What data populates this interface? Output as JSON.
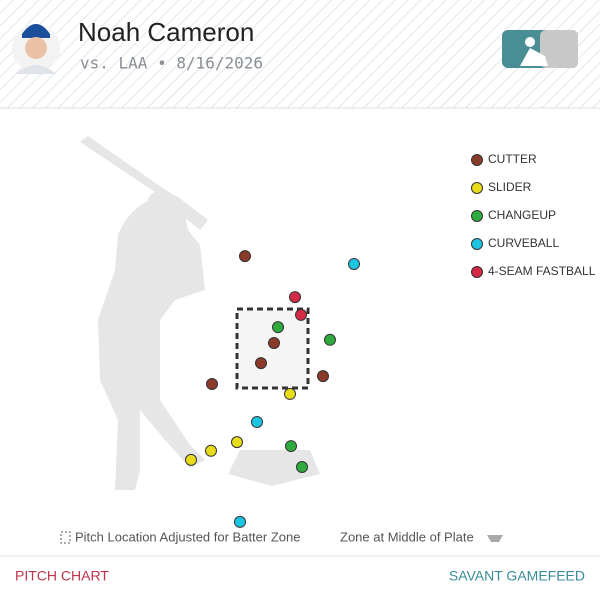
{
  "chart_data": {
    "type": "scatter",
    "title": "Noah Cameron",
    "subtitle": "vs. LAA • 8/16/2026",
    "xlim": [
      -4,
      4
    ],
    "ylim": [
      -2,
      7
    ],
    "series": [
      {
        "name": "CUTTER",
        "color": "#8b3a2a",
        "x": [
          -0.55,
          0.03,
          -0.23,
          -1.21,
          1.01
        ],
        "values": [
          4.84,
          2.64,
          2.13,
          1.6,
          1.8
        ]
      },
      {
        "name": "SLIDER",
        "color": "#e8dc1a",
        "x": [
          0.35,
          -0.71,
          -1.23,
          -1.63
        ],
        "values": [
          1.35,
          0.13,
          -0.09,
          -0.32
        ]
      },
      {
        "name": "CHANGEUP",
        "color": "#2eaa3f",
        "x": [
          0.11,
          1.15,
          0.37,
          0.59
        ],
        "values": [
          3.04,
          2.72,
          0.03,
          -0.5
        ]
      },
      {
        "name": "CURVEBALL",
        "color": "#1cc5e3",
        "x": [
          1.63,
          -0.31,
          -0.65
        ],
        "values": [
          4.64,
          0.64,
          -1.89
        ]
      },
      {
        "name": "4-SEAM FASTBALL",
        "color": "#d42a46",
        "x": [
          0.45,
          0.57
        ],
        "values": [
          3.8,
          3.35
        ]
      }
    ],
    "notes": [
      "Pitch Location Adjusted for Batter Zone",
      "Zone at Middle of Plate"
    ],
    "footer": {
      "left": "PITCH CHART",
      "right": "SAVANT GAMEFEED"
    }
  }
}
